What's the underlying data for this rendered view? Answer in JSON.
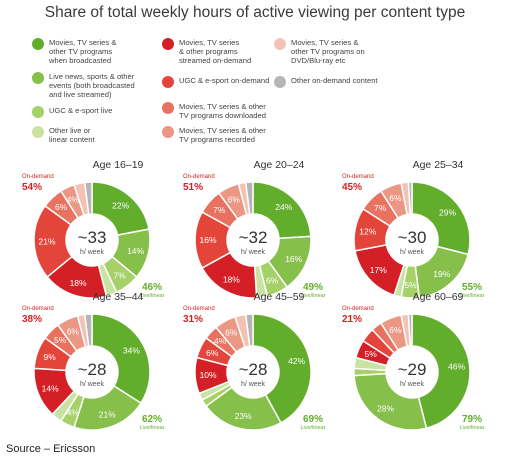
{
  "title": "Share of total weekly hours of active viewing per content type",
  "source": "Source – Ericsson",
  "colors": {
    "broadcast_tv": "#63ad2d",
    "live_events": "#86bf49",
    "ugc_live": "#a6d068",
    "other_live": "#c8e3a2",
    "streamed_od": "#d41f26",
    "ugc_od": "#e3453a",
    "downloaded": "#e8725f",
    "recorded": "#eb9783",
    "dvd": "#f2c2b4",
    "other_od": "#b5b5b5"
  },
  "legend": [
    {
      "key": "broadcast_tv",
      "label": "Movies, TV series &\nother TV programs\nwhen broadcasted"
    },
    {
      "key": "live_events",
      "label": "Live news, sports & other\nevents (both broadcasted\nand live streamed)"
    },
    {
      "key": "ugc_live",
      "label": "UGC & e-sport live"
    },
    {
      "key": "other_live",
      "label": "Other live or\nlinear content"
    },
    {
      "key": "streamed_od",
      "label": "Movies, TV series\n& other programs\nstreamed on-demand"
    },
    {
      "key": "ugc_od",
      "label": "UGC & e-sport on-demand"
    },
    {
      "key": "downloaded",
      "label": "Movies, TV series & other\nTV programs downloaded"
    },
    {
      "key": "recorded",
      "label": "Movies, TV series & other\nTV programs recorded"
    },
    {
      "key": "dvd",
      "label": "Movies, TV series &\nother TV programs on\nDVD/Blu-ray etc"
    },
    {
      "key": "other_od",
      "label": "Other on-demand content"
    }
  ],
  "labels": {
    "on_demand": "On-demand",
    "live_linear": "Live/linear",
    "per_week": "h/ week"
  },
  "chart_data": [
    {
      "type": "pie",
      "title": "Age 16–19",
      "center_value": "~33",
      "on_demand_share": "54%",
      "live_share": "46%",
      "segments": [
        {
          "key": "broadcast_tv",
          "value": 22,
          "label": "22%"
        },
        {
          "key": "live_events",
          "value": 14,
          "label": "14%"
        },
        {
          "key": "ugc_live",
          "value": 7,
          "label": "7%"
        },
        {
          "key": "other_live",
          "value": 3,
          "label": ""
        },
        {
          "key": "streamed_od",
          "value": 18,
          "label": "18%"
        },
        {
          "key": "ugc_od",
          "value": 21,
          "label": "21%"
        },
        {
          "key": "downloaded",
          "value": 6,
          "label": "6%"
        },
        {
          "key": "recorded",
          "value": 4,
          "label": "4%"
        },
        {
          "key": "dvd",
          "value": 3,
          "label": ""
        },
        {
          "key": "other_od",
          "value": 2,
          "label": ""
        }
      ]
    },
    {
      "type": "pie",
      "title": "Age 20–24",
      "center_value": "~32",
      "on_demand_share": "51%",
      "live_share": "49%",
      "segments": [
        {
          "key": "broadcast_tv",
          "value": 24,
          "label": "24%"
        },
        {
          "key": "live_events",
          "value": 16,
          "label": "16%"
        },
        {
          "key": "ugc_live",
          "value": 6,
          "label": "6%"
        },
        {
          "key": "other_live",
          "value": 3,
          "label": ""
        },
        {
          "key": "streamed_od",
          "value": 18,
          "label": "18%"
        },
        {
          "key": "ugc_od",
          "value": 16,
          "label": "16%"
        },
        {
          "key": "downloaded",
          "value": 7,
          "label": "7%"
        },
        {
          "key": "recorded",
          "value": 6,
          "label": "6%"
        },
        {
          "key": "dvd",
          "value": 2,
          "label": ""
        },
        {
          "key": "other_od",
          "value": 2,
          "label": ""
        }
      ]
    },
    {
      "type": "pie",
      "title": "Age 25–34",
      "center_value": "~30",
      "on_demand_share": "45%",
      "live_share": "55%",
      "segments": [
        {
          "key": "broadcast_tv",
          "value": 29,
          "label": "29%"
        },
        {
          "key": "live_events",
          "value": 19,
          "label": "19%"
        },
        {
          "key": "ugc_live",
          "value": 5,
          "label": "5%"
        },
        {
          "key": "other_live",
          "value": 2,
          "label": ""
        },
        {
          "key": "streamed_od",
          "value": 17,
          "label": "17%"
        },
        {
          "key": "ugc_od",
          "value": 12,
          "label": "12%"
        },
        {
          "key": "downloaded",
          "value": 7,
          "label": "7%"
        },
        {
          "key": "recorded",
          "value": 6,
          "label": "6%"
        },
        {
          "key": "dvd",
          "value": 2,
          "label": ""
        },
        {
          "key": "other_od",
          "value": 1,
          "label": ""
        }
      ]
    },
    {
      "type": "pie",
      "title": "Age 35–44",
      "center_value": "~28",
      "on_demand_share": "38%",
      "live_share": "62%",
      "segments": [
        {
          "key": "broadcast_tv",
          "value": 34,
          "label": "34%"
        },
        {
          "key": "live_events",
          "value": 21,
          "label": "21%"
        },
        {
          "key": "ugc_live",
          "value": 4,
          "label": "4%"
        },
        {
          "key": "other_live",
          "value": 3,
          "label": ""
        },
        {
          "key": "streamed_od",
          "value": 14,
          "label": "14%"
        },
        {
          "key": "ugc_od",
          "value": 9,
          "label": "9%"
        },
        {
          "key": "downloaded",
          "value": 5,
          "label": "5%"
        },
        {
          "key": "recorded",
          "value": 6,
          "label": "6%"
        },
        {
          "key": "dvd",
          "value": 2,
          "label": ""
        },
        {
          "key": "other_od",
          "value": 2,
          "label": ""
        }
      ]
    },
    {
      "type": "pie",
      "title": "Age 45–59",
      "center_value": "~28",
      "on_demand_share": "31%",
      "live_share": "69%",
      "segments": [
        {
          "key": "broadcast_tv",
          "value": 42,
          "label": "42%"
        },
        {
          "key": "live_events",
          "value": 23,
          "label": "23%"
        },
        {
          "key": "ugc_live",
          "value": 2,
          "label": ""
        },
        {
          "key": "other_live",
          "value": 2,
          "label": ""
        },
        {
          "key": "streamed_od",
          "value": 10,
          "label": "10%"
        },
        {
          "key": "ugc_od",
          "value": 6,
          "label": "6%"
        },
        {
          "key": "downloaded",
          "value": 4,
          "label": "4%"
        },
        {
          "key": "recorded",
          "value": 6,
          "label": "6%"
        },
        {
          "key": "dvd",
          "value": 3,
          "label": ""
        },
        {
          "key": "other_od",
          "value": 2,
          "label": ""
        }
      ]
    },
    {
      "type": "pie",
      "title": "Age 60–69",
      "center_value": "~29",
      "on_demand_share": "21%",
      "live_share": "79%",
      "segments": [
        {
          "key": "broadcast_tv",
          "value": 46,
          "label": "46%"
        },
        {
          "key": "live_events",
          "value": 28,
          "label": "28%"
        },
        {
          "key": "ugc_live",
          "value": 2,
          "label": ""
        },
        {
          "key": "other_live",
          "value": 3,
          "label": ""
        },
        {
          "key": "streamed_od",
          "value": 5,
          "label": "5%"
        },
        {
          "key": "ugc_od",
          "value": 4,
          "label": ""
        },
        {
          "key": "downloaded",
          "value": 3,
          "label": ""
        },
        {
          "key": "recorded",
          "value": 6,
          "label": "6%"
        },
        {
          "key": "dvd",
          "value": 2,
          "label": ""
        },
        {
          "key": "other_od",
          "value": 1,
          "label": ""
        }
      ]
    }
  ]
}
